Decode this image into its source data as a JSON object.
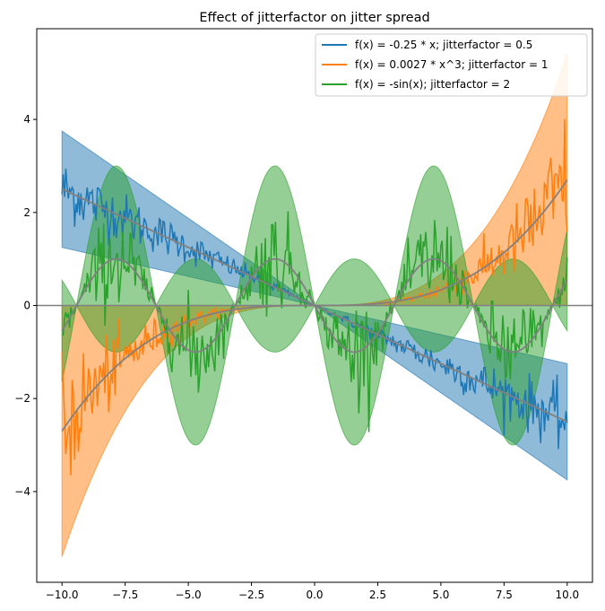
{
  "chart_data": {
    "type": "line",
    "title": "Effect of jitterfactor on jitter spread",
    "xlabel": "",
    "ylabel": "",
    "xlim": [
      -11.0,
      11.0
    ],
    "ylim": [
      -5.95,
      5.95
    ],
    "xticks": [
      "−10.0",
      "−7.5",
      "−5.0",
      "−2.5",
      "0.0",
      "2.5",
      "5.0",
      "7.5",
      "10.0"
    ],
    "xtick_values": [
      -10.0,
      -7.5,
      -5.0,
      -2.5,
      0.0,
      2.5,
      5.0,
      7.5,
      10.0
    ],
    "yticks": [
      "−4",
      "−2",
      "0",
      "2",
      "4"
    ],
    "ytick_values": [
      -4,
      -2,
      0,
      2,
      4
    ],
    "grid": false,
    "legend_position": "upper right",
    "baseline_y": 0,
    "x_range": [
      -10.0,
      10.0
    ],
    "series": [
      {
        "name": "f(x) = -0.25 * x; jitterfactor = 0.5",
        "function": "linear",
        "coefficient": -0.25,
        "jitterfactor": 0.5,
        "band_half_width_factor": 0.5,
        "color": "#1f77b4"
      },
      {
        "name": "f(x) = 0.0027 * x^3; jitterfactor = 1",
        "function": "cubic",
        "coefficient": 0.0027,
        "jitterfactor": 1,
        "band_half_width_factor": 1,
        "color": "#ff7f0e"
      },
      {
        "name": "f(x) = -sin(x); jitterfactor = 2",
        "function": "neg_sin",
        "coefficient": -1,
        "jitterfactor": 2,
        "band_half_width_factor": 2,
        "color": "#2ca02c"
      }
    ],
    "underlying_line_color": "#808080",
    "axis_line_color": "#808080"
  }
}
